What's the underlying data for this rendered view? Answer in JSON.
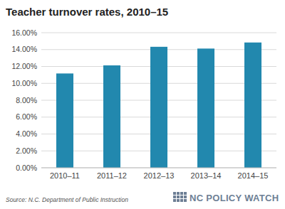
{
  "chart_data": {
    "type": "bar",
    "title": "Teacher turnover rates, 2010–15",
    "categories": [
      "2010–11",
      "2011–12",
      "2012–13",
      "2013–14",
      "2014–15"
    ],
    "values": [
      11.17,
      12.13,
      14.33,
      14.12,
      14.84
    ],
    "color": "#2288ae",
    "ylim": [
      0,
      16
    ],
    "yticks": [
      {
        "value": 0,
        "label": "0.00%"
      },
      {
        "value": 2,
        "label": "2.00%"
      },
      {
        "value": 4,
        "label": "4.00%"
      },
      {
        "value": 6,
        "label": "6.00%"
      },
      {
        "value": 8,
        "label": "8.00%"
      },
      {
        "value": 10,
        "label": "10.00%"
      },
      {
        "value": 12,
        "label": "12.00%"
      },
      {
        "value": 14,
        "label": "14.00%"
      },
      {
        "value": 16,
        "label": "16.00%"
      }
    ],
    "grid": true,
    "annotations": [
      "Source: N.C. Department of Public Instruction",
      "NC POLICY WATCH"
    ]
  }
}
